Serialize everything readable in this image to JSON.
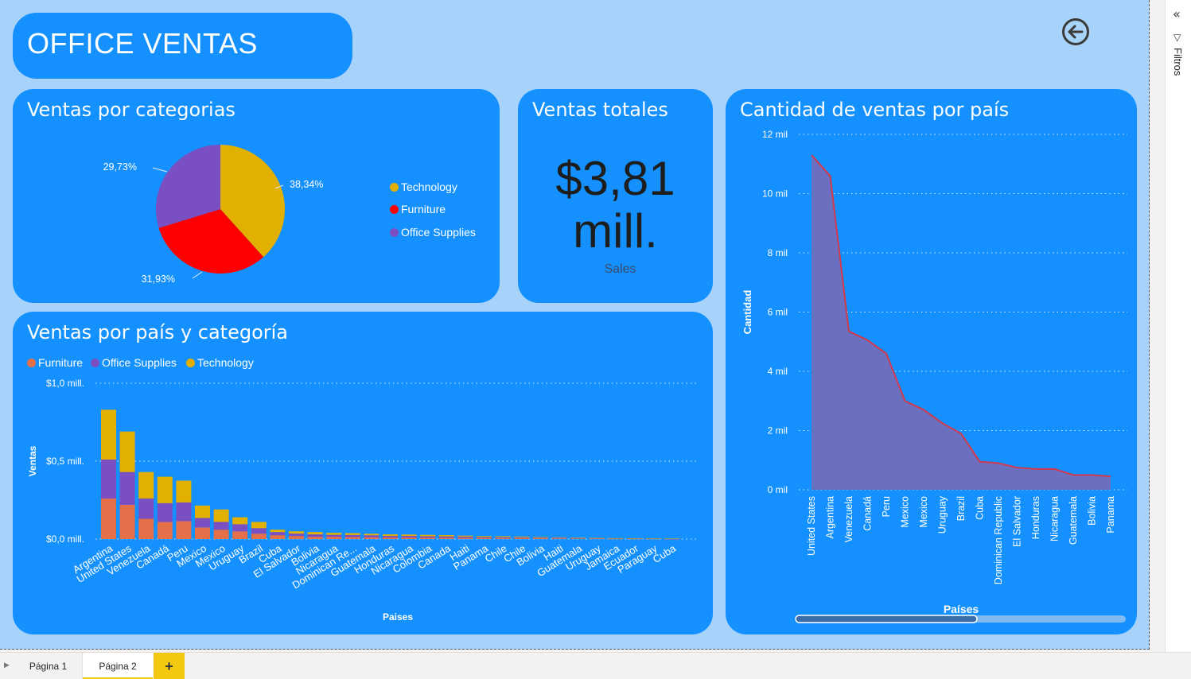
{
  "header": {
    "title": "OFFICE VENTAS",
    "back_icon": "back-arrow-icon"
  },
  "pie": {
    "title": "Ventas por categorias",
    "chart_data": {
      "type": "pie",
      "slices": [
        {
          "name": "Technology",
          "percent": 38.34,
          "label": "38,34%",
          "color": "#e1b000"
        },
        {
          "name": "Furniture",
          "percent": 31.93,
          "label": "31,93%",
          "color": "#ff0000"
        },
        {
          "name": "Office Supplies",
          "percent": 29.73,
          "label": "29,73%",
          "color": "#7a4fc2"
        }
      ],
      "legend": [
        "Technology",
        "Furniture",
        "Office Supplies"
      ]
    }
  },
  "kpi": {
    "title": "Ventas totales",
    "value": "$3,81 mill.",
    "label": "Sales"
  },
  "bar": {
    "title": "Ventas por país y categoría",
    "chart_data": {
      "type": "bar",
      "stacked": true,
      "legend": [
        "Furniture",
        "Office Supplies",
        "Technology"
      ],
      "colors": {
        "Furniture": "#e4704a",
        "Office Supplies": "#7a4fc2",
        "Technology": "#e1b000"
      },
      "ylabel": "Ventas",
      "xlabel": "Paises",
      "ylim": [
        0,
        1.0
      ],
      "yticks": [
        "$0,0 mill.",
        "$0,5 mill.",
        "$1,0 mill."
      ],
      "categories": [
        "Argentina",
        "United States",
        "Venezuela",
        "Canadá",
        "Peru",
        "Mexico",
        "Mexico",
        "Uruguay",
        "Brazil",
        "Cuba",
        "El Salvador",
        "Bolivia",
        "Nicaragua",
        "Dominican Re...",
        "Guatemala",
        "Honduras",
        "Nicaragua",
        "Colombia",
        "Canada",
        "Haiti",
        "Panama",
        "Chile",
        "Chile",
        "Bolivia",
        "Haiti",
        "Guatemala",
        "Uruguay",
        "Jamaica",
        "Ecuador",
        "Paraguay",
        "Cuba"
      ],
      "series": [
        {
          "name": "Furniture",
          "values": [
            0.26,
            0.22,
            0.13,
            0.11,
            0.115,
            0.075,
            0.06,
            0.05,
            0.035,
            0.025,
            0.02,
            0.015,
            0.015,
            0.014,
            0.012,
            0.01,
            0.01,
            0.009,
            0.009,
            0.008,
            0.007,
            0.006,
            0.006,
            0.005,
            0.004,
            0.003,
            0.003,
            0.002,
            0.002,
            0.002,
            0.001
          ]
        },
        {
          "name": "Office Supplies",
          "values": [
            0.25,
            0.21,
            0.13,
            0.12,
            0.12,
            0.06,
            0.05,
            0.045,
            0.035,
            0.02,
            0.015,
            0.015,
            0.012,
            0.012,
            0.012,
            0.01,
            0.01,
            0.009,
            0.008,
            0.008,
            0.006,
            0.006,
            0.005,
            0.004,
            0.004,
            0.003,
            0.002,
            0.002,
            0.002,
            0.001,
            0.001
          ]
        },
        {
          "name": "Technology",
          "values": [
            0.32,
            0.26,
            0.17,
            0.17,
            0.14,
            0.08,
            0.08,
            0.045,
            0.04,
            0.015,
            0.015,
            0.015,
            0.013,
            0.012,
            0.01,
            0.01,
            0.009,
            0.009,
            0.008,
            0.006,
            0.006,
            0.006,
            0.005,
            0.004,
            0.003,
            0.003,
            0.002,
            0.002,
            0.001,
            0.001,
            0.001
          ]
        }
      ]
    }
  },
  "area": {
    "title": "Cantidad de ventas por país",
    "chart_data": {
      "type": "area",
      "ylabel": "Cantidad",
      "xlabel": "Países",
      "ylim": [
        0,
        12000
      ],
      "yticks": [
        "0 mil",
        "2 mil",
        "4 mil",
        "6 mil",
        "8 mil",
        "10 mil",
        "12 mil"
      ],
      "categories": [
        "United States",
        "Argentina",
        "Venezuela",
        "Canadá",
        "Peru",
        "Mexico",
        "Mexico",
        "Uruguay",
        "Brazil",
        "Cuba",
        "Dominican Republic",
        "El Salvador",
        "Honduras",
        "Nicaragua",
        "Guatemala",
        "Bolivia",
        "Panama"
      ],
      "values": [
        11300,
        10600,
        5350,
        5050,
        4600,
        3000,
        2700,
        2250,
        1900,
        950,
        900,
        750,
        700,
        700,
        500,
        500,
        450
      ],
      "fill_color": "#6a6fbf",
      "line_color": "#d13a4c"
    }
  },
  "side_pane": {
    "label": "Filtros"
  },
  "tabs": {
    "items": [
      "Página 1",
      "Página 2"
    ],
    "add": "+"
  }
}
